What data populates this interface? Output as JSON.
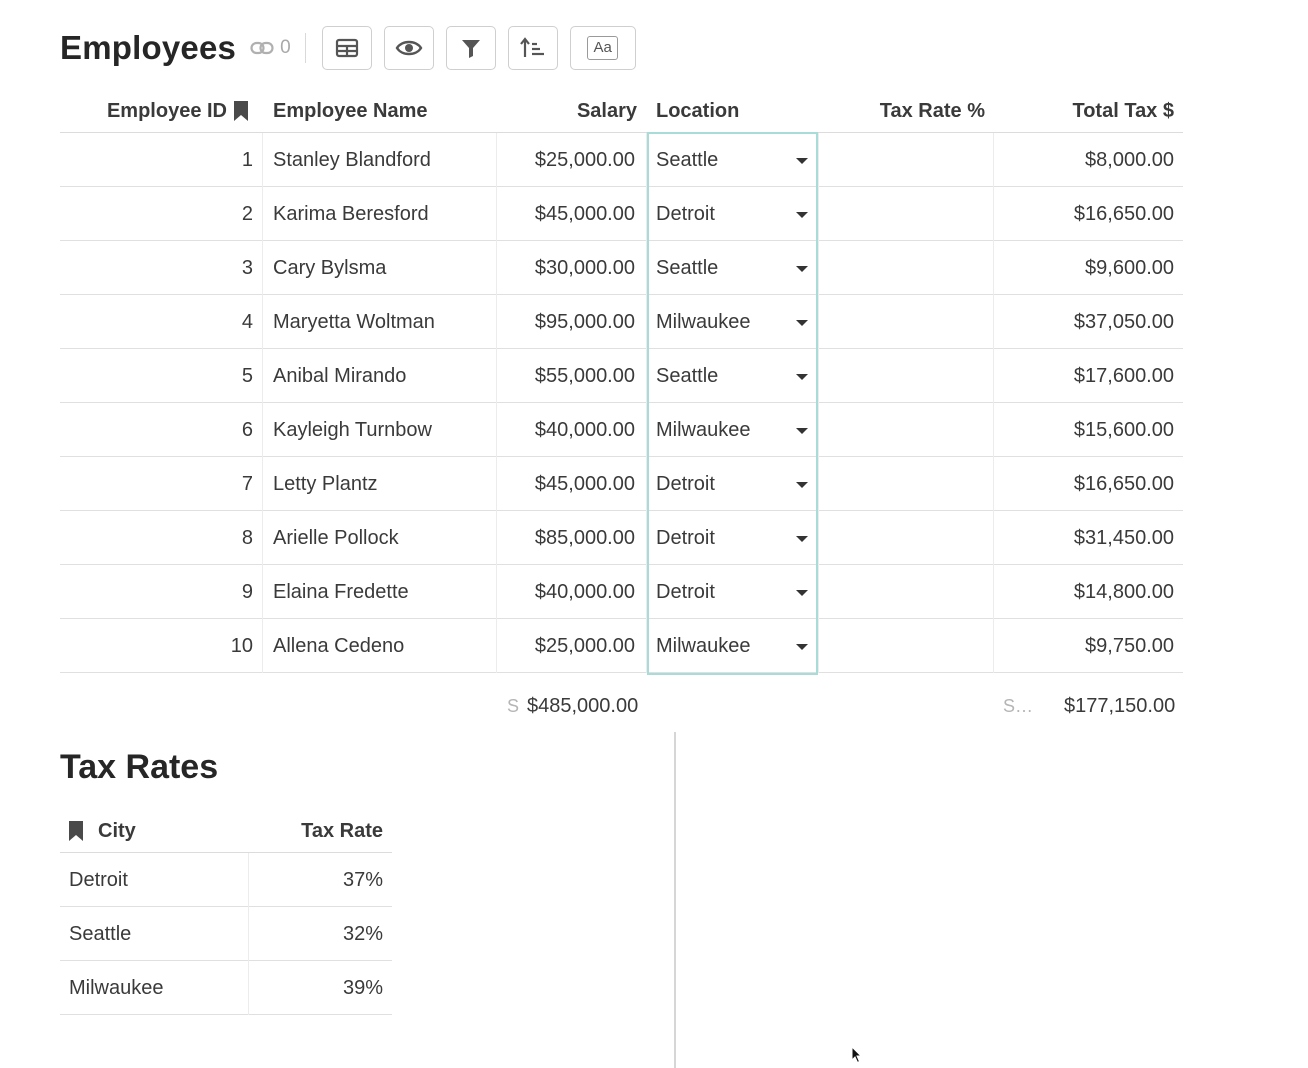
{
  "employees": {
    "title": "Employees",
    "link_count": "0",
    "toolbar": {
      "layout_icon": "table-layout-icon",
      "visibility_icon": "eye-icon",
      "filter_icon": "filter-icon",
      "sort_icon": "sort-icon",
      "text_style_label": "Aa"
    },
    "columns": {
      "employee_id": "Employee ID",
      "employee_name": "Employee Name",
      "salary": "Salary",
      "location": "Location",
      "tax_rate": "Tax Rate %",
      "total_tax": "Total Tax $"
    },
    "rows": [
      {
        "id": "1",
        "name": "Stanley Blandford",
        "salary": "$25,000.00",
        "location": "Seattle",
        "tax_rate": "",
        "total_tax": "$8,000.00"
      },
      {
        "id": "2",
        "name": "Karima Beresford",
        "salary": "$45,000.00",
        "location": "Detroit",
        "tax_rate": "",
        "total_tax": "$16,650.00"
      },
      {
        "id": "3",
        "name": "Cary Bylsma",
        "salary": "$30,000.00",
        "location": "Seattle",
        "tax_rate": "",
        "total_tax": "$9,600.00"
      },
      {
        "id": "4",
        "name": "Maryetta Woltman",
        "salary": "$95,000.00",
        "location": "Milwaukee",
        "tax_rate": "",
        "total_tax": "$37,050.00"
      },
      {
        "id": "5",
        "name": "Anibal Mirando",
        "salary": "$55,000.00",
        "location": "Seattle",
        "tax_rate": "",
        "total_tax": "$17,600.00"
      },
      {
        "id": "6",
        "name": "Kayleigh Turnbow",
        "salary": "$40,000.00",
        "location": "Milwaukee",
        "tax_rate": "",
        "total_tax": "$15,600.00"
      },
      {
        "id": "7",
        "name": "Letty Plantz",
        "salary": "$45,000.00",
        "location": "Detroit",
        "tax_rate": "",
        "total_tax": "$16,650.00"
      },
      {
        "id": "8",
        "name": "Arielle Pollock",
        "salary": "$85,000.00",
        "location": "Detroit",
        "tax_rate": "",
        "total_tax": "$31,450.00"
      },
      {
        "id": "9",
        "name": "Elaina Fredette",
        "salary": "$40,000.00",
        "location": "Detroit",
        "tax_rate": "",
        "total_tax": "$14,800.00"
      },
      {
        "id": "10",
        "name": "Allena Cedeno",
        "salary": "$25,000.00",
        "location": "Milwaukee",
        "tax_rate": "",
        "total_tax": "$9,750.00"
      }
    ],
    "summary": {
      "salary_label": "S",
      "salary_value": "$485,000.00",
      "total_tax_label": "S…",
      "total_tax_value": "$177,150.00"
    }
  },
  "tax_rates": {
    "title": "Tax Rates",
    "columns": {
      "city": "City",
      "tax_rate": "Tax Rate"
    },
    "rows": [
      {
        "city": "Detroit",
        "rate": "37%"
      },
      {
        "city": "Seattle",
        "rate": "32%"
      },
      {
        "city": "Milwaukee",
        "rate": "39%"
      }
    ]
  },
  "colors": {
    "selection_border": "#a9dcd9",
    "row_border": "#e0e0e0",
    "text": "#3a3a3a"
  }
}
